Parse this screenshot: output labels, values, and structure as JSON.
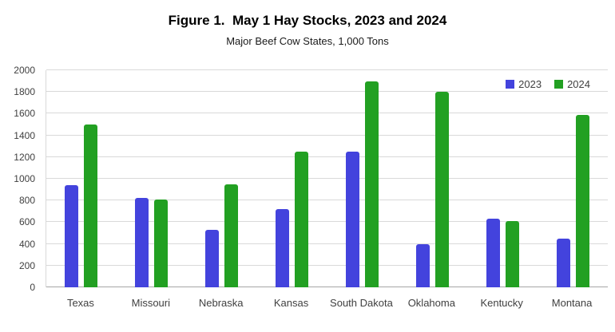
{
  "title": "Figure 1.  May 1 Hay Stocks, 2023 and 2024",
  "subtitle": "Major Beef Cow States, 1,000 Tons",
  "colors": {
    "series_2023": "#4343dd",
    "series_2024": "#22a022",
    "grid": "#d9d9d9",
    "axis": "#a6a6a6",
    "text": "#404040"
  },
  "chart_data": {
    "type": "bar",
    "categories": [
      "Texas",
      "Missouri",
      "Nebraska",
      "Kansas",
      "South Dakota",
      "Oklahoma",
      "Kentucky",
      "Montana"
    ],
    "series": [
      {
        "name": "2023",
        "color": "#4343dd",
        "values": [
          940,
          820,
          530,
          720,
          1250,
          400,
          630,
          450
        ]
      },
      {
        "name": "2024",
        "color": "#22a022",
        "values": [
          1500,
          810,
          950,
          1250,
          1900,
          1800,
          610,
          1590
        ]
      }
    ],
    "title": "Figure 1.  May 1 Hay Stocks, 2023 and 2024",
    "subtitle": "Major Beef Cow States, 1,000 Tons",
    "xlabel": "",
    "ylabel": "",
    "ylim": [
      0,
      2000
    ],
    "ytick_step": 200,
    "grid": true,
    "legend_position": "top-right"
  }
}
